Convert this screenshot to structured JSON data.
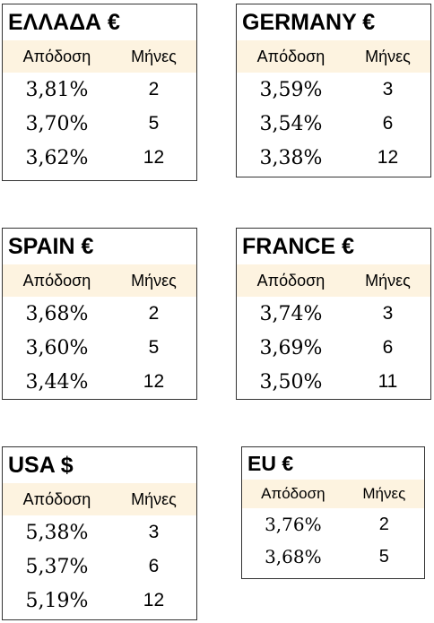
{
  "headers": {
    "yield": "Απόδοση",
    "months": "Μήνες"
  },
  "cards": [
    {
      "title": "ΕΛΛΑΔΑ €",
      "rows": [
        {
          "rate": "3,81%",
          "months": "2"
        },
        {
          "rate": "3,70%",
          "months": "5"
        },
        {
          "rate": "3,62%",
          "months": "12"
        }
      ]
    },
    {
      "title": "GERMANY €",
      "rows": [
        {
          "rate": "3,59%",
          "months": "3"
        },
        {
          "rate": "3,54%",
          "months": "6"
        },
        {
          "rate": "3,38%",
          "months": "12"
        }
      ]
    },
    {
      "title": "SPAIN €",
      "rows": [
        {
          "rate": "3,68%",
          "months": "2"
        },
        {
          "rate": "3,60%",
          "months": "5"
        },
        {
          "rate": "3,44%",
          "months": "12"
        }
      ]
    },
    {
      "title": "FRANCE €",
      "rows": [
        {
          "rate": "3,74%",
          "months": "3"
        },
        {
          "rate": "3,69%",
          "months": "6"
        },
        {
          "rate": "3,50%",
          "months": "11"
        }
      ]
    },
    {
      "title": "USA $",
      "rows": [
        {
          "rate": "5,38%",
          "months": "3"
        },
        {
          "rate": "5,37%",
          "months": "6"
        },
        {
          "rate": "5,19%",
          "months": "12"
        }
      ]
    },
    {
      "title": "EU €",
      "rows": [
        {
          "rate": "3,76%",
          "months": "2"
        },
        {
          "rate": "3,68%",
          "months": "5"
        }
      ]
    }
  ]
}
